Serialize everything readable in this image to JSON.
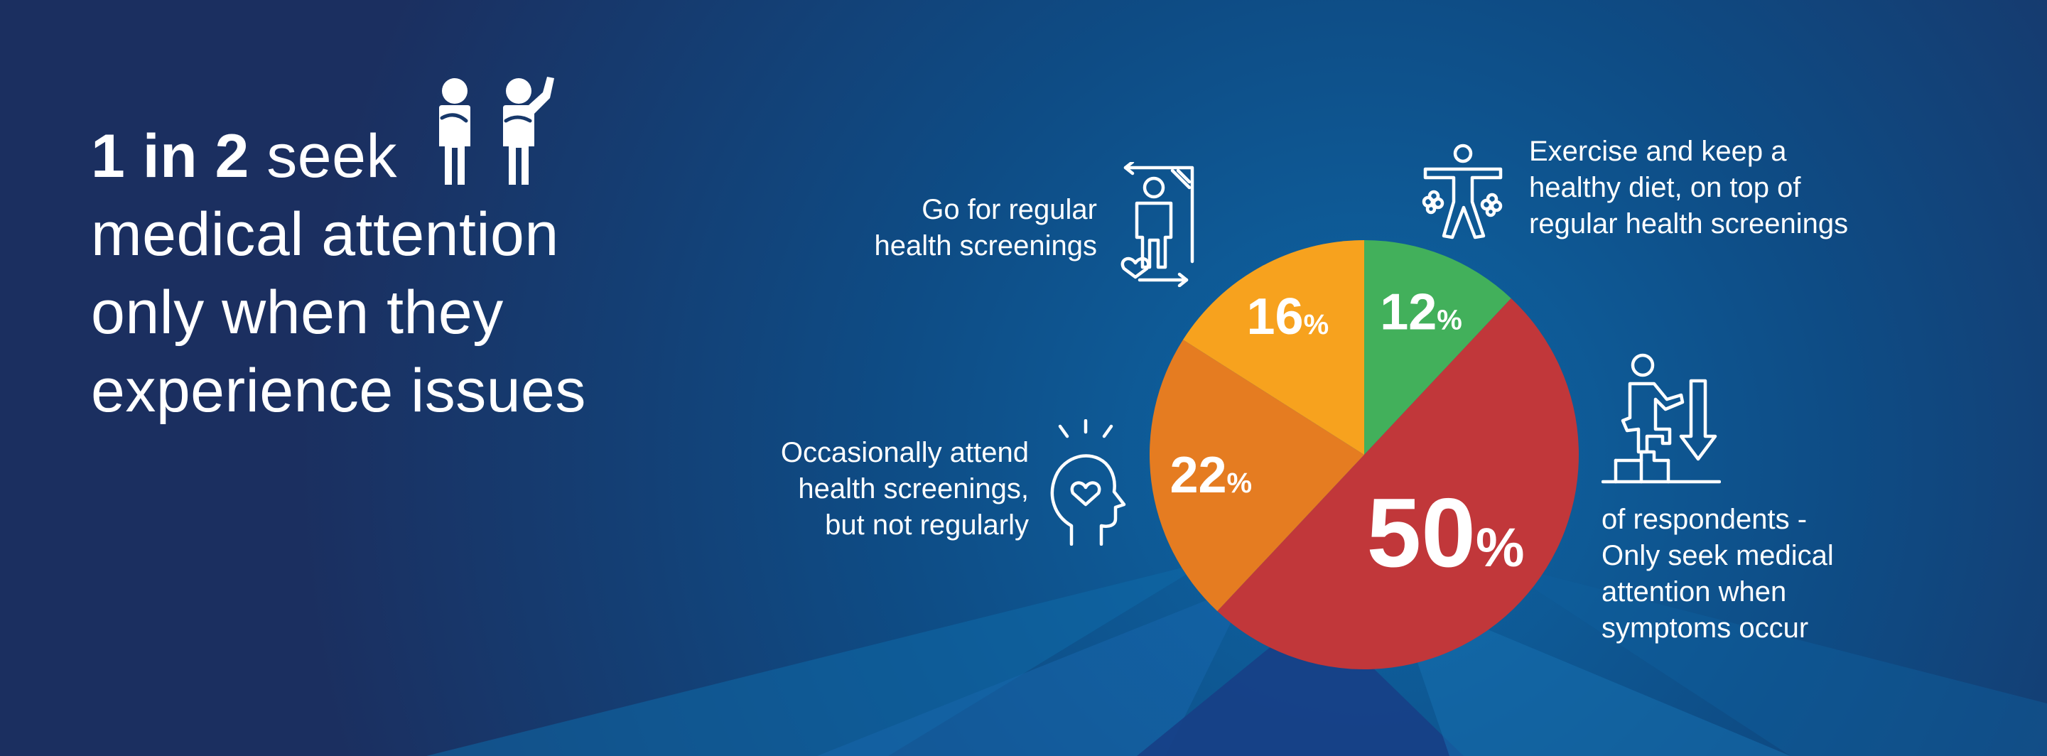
{
  "headline": {
    "bold": "1 in 2",
    "rest": "seek",
    "line2": "medical attention",
    "line3": "only when they",
    "line4": "experience issues",
    "icon": "two-people-icon"
  },
  "chart_data": {
    "type": "pie",
    "unit": "%",
    "slices": [
      {
        "label": "Exercise and keep a healthy diet, on top of regular health screenings",
        "value": 12,
        "value_text": "12",
        "color": "#42b05b"
      },
      {
        "label": "Only seek medical attention when symptoms occur",
        "value": 50,
        "value_text": "50",
        "color": "#c1373a"
      },
      {
        "label": "Occasionally attend health screenings, but not regularly",
        "value": 22,
        "value_text": "22",
        "color": "#e57c21"
      },
      {
        "label": "Go for regular health screenings",
        "value": 16,
        "value_text": "16",
        "color": "#f7a21e"
      }
    ]
  },
  "labels": {
    "exercise": [
      "Exercise and keep a",
      "healthy diet, on top of",
      "regular health screenings"
    ],
    "regular": [
      "Go for regular",
      "health screenings"
    ],
    "occasional": [
      "Occasionally attend",
      "health screenings,",
      "but not regularly"
    ],
    "symptoms": [
      "of respondents -",
      "Only seek medical",
      "attention when",
      "symptoms occur"
    ]
  },
  "icons": {
    "exercise": "exercise-icon",
    "regular": "health-screening-icon",
    "occasional": "mind-heart-icon",
    "symptoms": "stairs-down-icon"
  },
  "colors": {
    "background": "#17386a",
    "text": "#ffffff"
  }
}
